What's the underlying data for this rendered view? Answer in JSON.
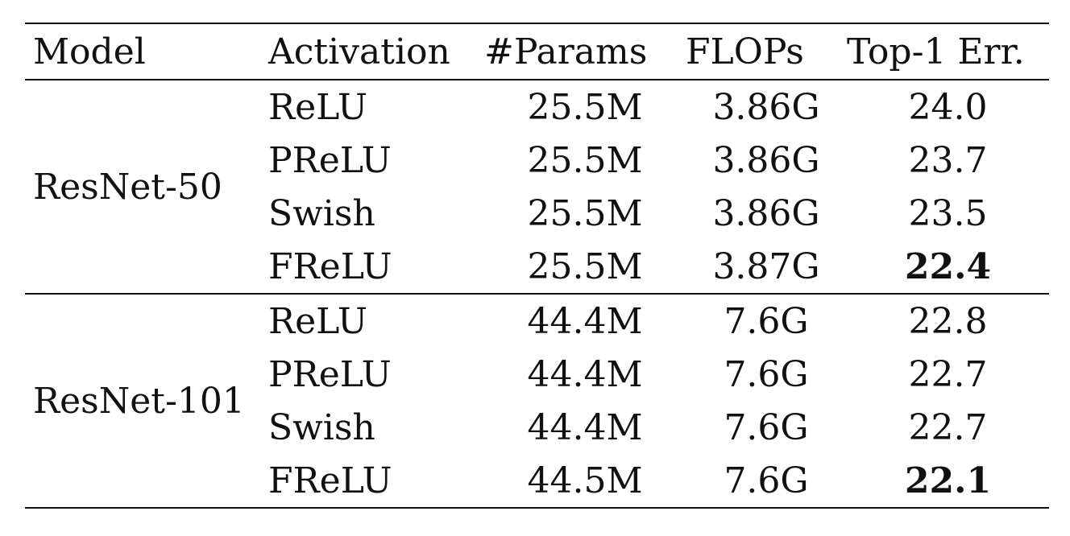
{
  "table": {
    "headers": [
      "Model",
      "Activation",
      "#Params",
      "FLOPs",
      "Top-1 Err."
    ],
    "groups": [
      {
        "model": "ResNet-50",
        "rows": [
          {
            "activation": "ReLU",
            "params": "25.5M",
            "flops": "3.86G",
            "err": "24.0",
            "best": false
          },
          {
            "activation": "PReLU",
            "params": "25.5M",
            "flops": "3.86G",
            "err": "23.7",
            "best": false
          },
          {
            "activation": "Swish",
            "params": "25.5M",
            "flops": "3.86G",
            "err": "23.5",
            "best": false
          },
          {
            "activation": "FReLU",
            "params": "25.5M",
            "flops": "3.87G",
            "err": "22.4",
            "best": true
          }
        ]
      },
      {
        "model": "ResNet-101",
        "rows": [
          {
            "activation": "ReLU",
            "params": "44.4M",
            "flops": "7.6G",
            "err": "22.8",
            "best": false
          },
          {
            "activation": "PReLU",
            "params": "44.4M",
            "flops": "7.6G",
            "err": "22.7",
            "best": false
          },
          {
            "activation": "Swish",
            "params": "44.4M",
            "flops": "7.6G",
            "err": "22.7",
            "best": false
          },
          {
            "activation": "FReLU",
            "params": "44.5M",
            "flops": "7.6G",
            "err": "22.1",
            "best": true
          }
        ]
      }
    ]
  }
}
